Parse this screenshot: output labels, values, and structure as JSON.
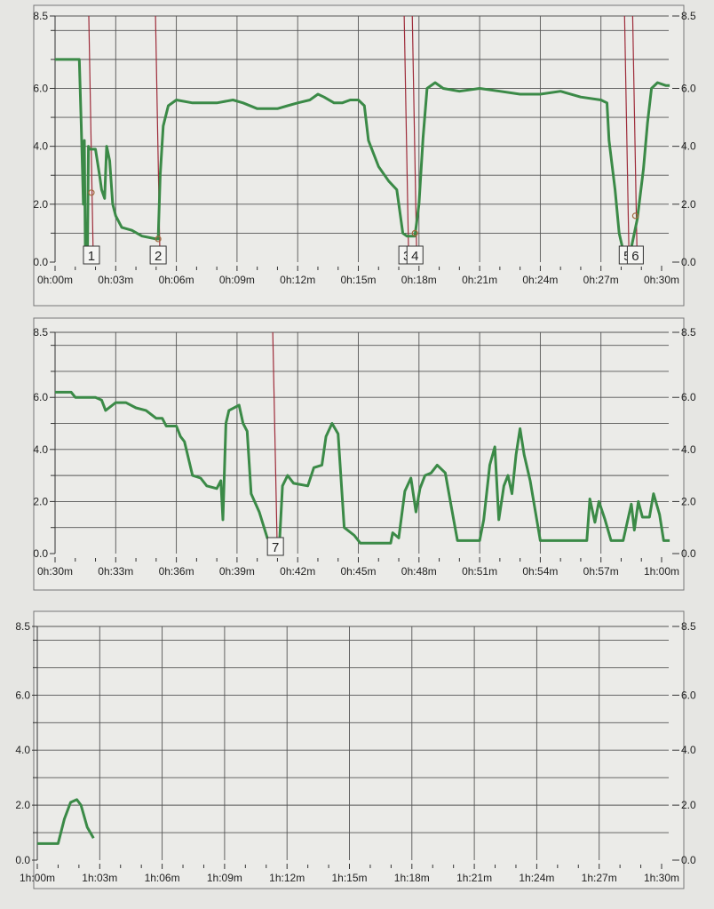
{
  "colors": {
    "series": "#3b8a47",
    "marker": "#9e2c3a",
    "grid": "#555555",
    "paper": "#ebebe8"
  },
  "chart_data": [
    {
      "type": "line",
      "xlim": [
        0,
        30
      ],
      "ylim": [
        0,
        8.5
      ],
      "x_ticks": [
        "0h:00m",
        "0h:03m",
        "0h:06m",
        "0h:09m",
        "0h:12m",
        "0h:15m",
        "0h:18m",
        "0h:21m",
        "0h:24m",
        "0h:27m",
        "0h:30m"
      ],
      "y_ticks": [
        "0.0",
        "2.0",
        "4.0",
        "6.0",
        "8.5"
      ],
      "grid": true,
      "series": [
        {
          "points": [
            [
              0,
              7.0
            ],
            [
              1.2,
              7.0
            ],
            [
              1.3,
              4.6
            ],
            [
              1.4,
              2.0
            ],
            [
              1.45,
              4.2
            ],
            [
              1.5,
              0.0
            ],
            [
              1.6,
              0.0
            ],
            [
              1.65,
              4.0
            ],
            [
              1.7,
              3.9
            ],
            [
              2.0,
              3.9
            ],
            [
              2.2,
              3.0
            ],
            [
              2.3,
              2.5
            ],
            [
              2.45,
              2.2
            ],
            [
              2.55,
              4.0
            ],
            [
              2.7,
              3.5
            ],
            [
              2.85,
              2.0
            ],
            [
              3.0,
              1.6
            ],
            [
              3.3,
              1.2
            ],
            [
              3.8,
              1.1
            ],
            [
              4.3,
              0.9
            ],
            [
              5.0,
              0.8
            ],
            [
              5.1,
              0.8
            ],
            [
              5.2,
              3.0
            ],
            [
              5.35,
              4.7
            ],
            [
              5.6,
              5.4
            ],
            [
              6.0,
              5.6
            ],
            [
              6.8,
              5.5
            ],
            [
              8.0,
              5.5
            ],
            [
              8.8,
              5.6
            ],
            [
              9.3,
              5.5
            ],
            [
              10.0,
              5.3
            ],
            [
              11.0,
              5.3
            ],
            [
              11.5,
              5.4
            ],
            [
              12.0,
              5.5
            ],
            [
              12.6,
              5.6
            ],
            [
              13.0,
              5.8
            ],
            [
              13.3,
              5.7
            ],
            [
              13.8,
              5.5
            ],
            [
              14.2,
              5.5
            ],
            [
              14.6,
              5.6
            ],
            [
              15.0,
              5.6
            ],
            [
              15.3,
              5.4
            ],
            [
              15.5,
              4.2
            ],
            [
              16.0,
              3.3
            ],
            [
              16.5,
              2.8
            ],
            [
              16.9,
              2.5
            ],
            [
              17.2,
              1.0
            ],
            [
              17.4,
              0.9
            ],
            [
              17.8,
              0.9
            ],
            [
              18.0,
              2.0
            ],
            [
              18.2,
              4.3
            ],
            [
              18.4,
              6.0
            ],
            [
              18.8,
              6.2
            ],
            [
              19.2,
              6.0
            ],
            [
              20.0,
              5.9
            ],
            [
              21.0,
              6.0
            ],
            [
              22.0,
              5.9
            ],
            [
              23.0,
              5.8
            ],
            [
              24.0,
              5.8
            ],
            [
              25.0,
              5.9
            ],
            [
              26.0,
              5.7
            ],
            [
              27.0,
              5.6
            ],
            [
              27.3,
              5.5
            ],
            [
              27.4,
              4.2
            ],
            [
              27.7,
              2.5
            ],
            [
              27.9,
              1.0
            ],
            [
              28.1,
              0.4
            ],
            [
              28.3,
              0.4
            ],
            [
              28.5,
              0.5
            ],
            [
              28.8,
              1.5
            ],
            [
              29.1,
              3.2
            ],
            [
              29.3,
              4.8
            ],
            [
              29.5,
              6.0
            ],
            [
              29.8,
              6.2
            ],
            [
              30.2,
              6.1
            ],
            [
              30.4,
              6.1
            ]
          ]
        }
      ],
      "markers": [
        {
          "label": "1",
          "x": 1.8,
          "y": 2.4
        },
        {
          "label": "2",
          "x": 5.1,
          "y": 0.8
        },
        {
          "label": "3",
          "x": 17.4,
          "y": null
        },
        {
          "label": "4",
          "x": 17.8,
          "y": 1.0
        },
        {
          "label": "5",
          "x": 28.3,
          "y": null
        },
        {
          "label": "6",
          "x": 28.7,
          "y": 1.6
        }
      ]
    },
    {
      "type": "line",
      "xlim": [
        30,
        60
      ],
      "ylim": [
        0,
        8.5
      ],
      "x_ticks": [
        "0h:30m",
        "0h:33m",
        "0h:36m",
        "0h:39m",
        "0h:42m",
        "0h:45m",
        "0h:48m",
        "0h:51m",
        "0h:54m",
        "0h:57m",
        "1h:00m"
      ],
      "y_ticks": [
        "0.0",
        "2.0",
        "4.0",
        "6.0",
        "8.5"
      ],
      "grid": true,
      "series": [
        {
          "points": [
            [
              30,
              6.2
            ],
            [
              30.8,
              6.2
            ],
            [
              31,
              6.0
            ],
            [
              32,
              6.0
            ],
            [
              32.3,
              5.9
            ],
            [
              32.5,
              5.5
            ],
            [
              33,
              5.8
            ],
            [
              33.5,
              5.8
            ],
            [
              34,
              5.6
            ],
            [
              34.5,
              5.5
            ],
            [
              35,
              5.2
            ],
            [
              35.3,
              5.2
            ],
            [
              35.5,
              4.9
            ],
            [
              36,
              4.9
            ],
            [
              36.2,
              4.5
            ],
            [
              36.4,
              4.3
            ],
            [
              36.8,
              3.0
            ],
            [
              37.2,
              2.9
            ],
            [
              37.5,
              2.6
            ],
            [
              38,
              2.5
            ],
            [
              38.2,
              2.8
            ],
            [
              38.3,
              1.3
            ],
            [
              38.45,
              5.0
            ],
            [
              38.6,
              5.5
            ],
            [
              39.1,
              5.7
            ],
            [
              39.3,
              5.0
            ],
            [
              39.5,
              4.7
            ],
            [
              39.7,
              2.3
            ],
            [
              40.1,
              1.6
            ],
            [
              40.5,
              0.6
            ],
            [
              40.9,
              0.4
            ],
            [
              41.1,
              0.4
            ],
            [
              41.25,
              2.6
            ],
            [
              41.5,
              3.0
            ],
            [
              41.8,
              2.7
            ],
            [
              42.5,
              2.6
            ],
            [
              42.8,
              3.3
            ],
            [
              43.2,
              3.4
            ],
            [
              43.4,
              4.5
            ],
            [
              43.7,
              5.0
            ],
            [
              44.0,
              4.6
            ],
            [
              44.3,
              1.0
            ],
            [
              44.8,
              0.7
            ],
            [
              45.1,
              0.4
            ],
            [
              46.6,
              0.4
            ],
            [
              46.7,
              0.8
            ],
            [
              47.0,
              0.6
            ],
            [
              47.3,
              2.4
            ],
            [
              47.6,
              2.9
            ],
            [
              47.85,
              1.6
            ],
            [
              48.05,
              2.5
            ],
            [
              48.3,
              3.0
            ],
            [
              48.6,
              3.1
            ],
            [
              48.9,
              3.4
            ],
            [
              49.3,
              3.1
            ],
            [
              49.6,
              1.8
            ],
            [
              49.9,
              0.5
            ],
            [
              51.0,
              0.5
            ],
            [
              51.2,
              1.3
            ],
            [
              51.5,
              3.4
            ],
            [
              51.75,
              4.1
            ],
            [
              51.95,
              1.3
            ],
            [
              52.2,
              2.6
            ],
            [
              52.4,
              3.0
            ],
            [
              52.6,
              2.3
            ],
            [
              52.8,
              3.8
            ],
            [
              53.0,
              4.8
            ],
            [
              53.2,
              3.8
            ],
            [
              53.5,
              2.8
            ],
            [
              54.0,
              0.5
            ],
            [
              56.3,
              0.5
            ],
            [
              56.45,
              2.1
            ],
            [
              56.7,
              1.2
            ],
            [
              56.9,
              2.0
            ],
            [
              57.2,
              1.3
            ],
            [
              57.5,
              0.5
            ],
            [
              58.1,
              0.5
            ],
            [
              58.3,
              1.2
            ],
            [
              58.5,
              1.9
            ],
            [
              58.65,
              0.9
            ],
            [
              58.85,
              2.0
            ],
            [
              59.05,
              1.4
            ],
            [
              59.4,
              1.4
            ],
            [
              59.6,
              2.3
            ],
            [
              59.9,
              1.5
            ],
            [
              60.1,
              0.5
            ],
            [
              60.4,
              0.5
            ]
          ]
        }
      ],
      "markers": [
        {
          "label": "7",
          "x": 40.9,
          "y": null
        }
      ]
    },
    {
      "type": "line",
      "xlim": [
        60,
        90
      ],
      "ylim": [
        0,
        8.5
      ],
      "x_ticks": [
        "1h:00m",
        "1h:03m",
        "1h:06m",
        "1h:09m",
        "1h:12m",
        "1h:15m",
        "1h:18m",
        "1h:21m",
        "1h:24m",
        "1h:27m",
        "1h:30m"
      ],
      "y_ticks": [
        "0.0",
        "2.0",
        "4.0",
        "6.0",
        "8.5"
      ],
      "grid": true,
      "series": [
        {
          "points": [
            [
              60,
              0.6
            ],
            [
              61.0,
              0.6
            ],
            [
              61.3,
              1.5
            ],
            [
              61.6,
              2.1
            ],
            [
              61.9,
              2.2
            ],
            [
              62.1,
              2.0
            ],
            [
              62.4,
              1.2
            ],
            [
              62.7,
              0.8
            ]
          ]
        }
      ],
      "markers": []
    }
  ]
}
